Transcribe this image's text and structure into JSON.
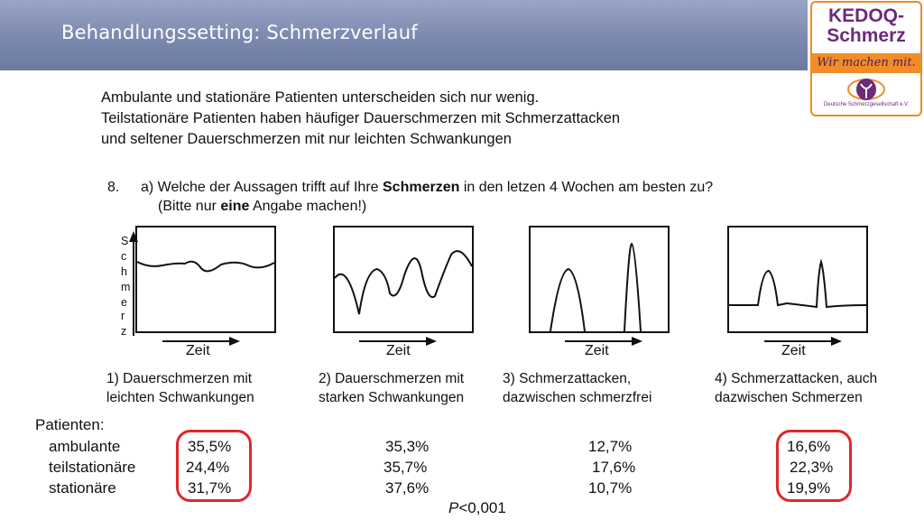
{
  "header": {
    "title": "Behandlungssetting: Schmerzverlauf"
  },
  "logo": {
    "line1": "KEDOQ-",
    "line2": "Schmerz",
    "slogan": "Wir machen mit.",
    "small": "Deutsche Schmerzgesellschaft e.V.",
    "colors": {
      "purple": "#6c2a7a",
      "orange": "#f28c28"
    }
  },
  "summary": {
    "lines": [
      "Ambulante und stationäre Patienten unterscheiden sich nur wenig.",
      "Teilstationäre Patienten haben häufiger Dauerschmerzen mit Schmerzattacken",
      "und seltener Dauerschmerzen mit nur leichten Schwankungen"
    ]
  },
  "question": {
    "number": "8.",
    "line1_pre": "a) Welche der Aussagen trifft auf Ihre ",
    "line1_bold": "Schmerzen",
    "line1_post": " in den letzen 4 Wochen am besten zu?",
    "line2_pre": "(Bitte nur ",
    "line2_bold": "eine",
    "line2_post": " Angabe machen!)"
  },
  "y_axis_letters": [
    "S",
    "c",
    "h",
    "m",
    "e",
    "r",
    "z"
  ],
  "x_axis_label": "Zeit",
  "options": [
    {
      "line1": "1) Dauerschmerzen mit",
      "line2": "leichten Schwankungen"
    },
    {
      "line1": "2) Dauerschmerzen mit",
      "line2": "starken Schwankungen"
    },
    {
      "line1": "3) Schmerzattacken,",
      "line2": "dazwischen schmerzfrei"
    },
    {
      "line1": "4) Schmerzattacken, auch",
      "line2": "dazwischen Schmerzen"
    }
  ],
  "patients": {
    "label": "Patienten:",
    "rows": [
      {
        "name": "ambulante",
        "values": [
          "35,5%",
          "35,3%",
          "12,7%",
          "16,6%"
        ]
      },
      {
        "name": "teilstationäre",
        "values": [
          "24,4%",
          "35,7%",
          "17,6%",
          "22,3%"
        ]
      },
      {
        "name": "stationäre",
        "values": [
          "31,7%",
          "37,6%",
          "10,7%",
          "19,9%"
        ]
      }
    ]
  },
  "pvalue": {
    "p": "P",
    "rest": "<0,001"
  },
  "highlight_color": "#e0262b"
}
